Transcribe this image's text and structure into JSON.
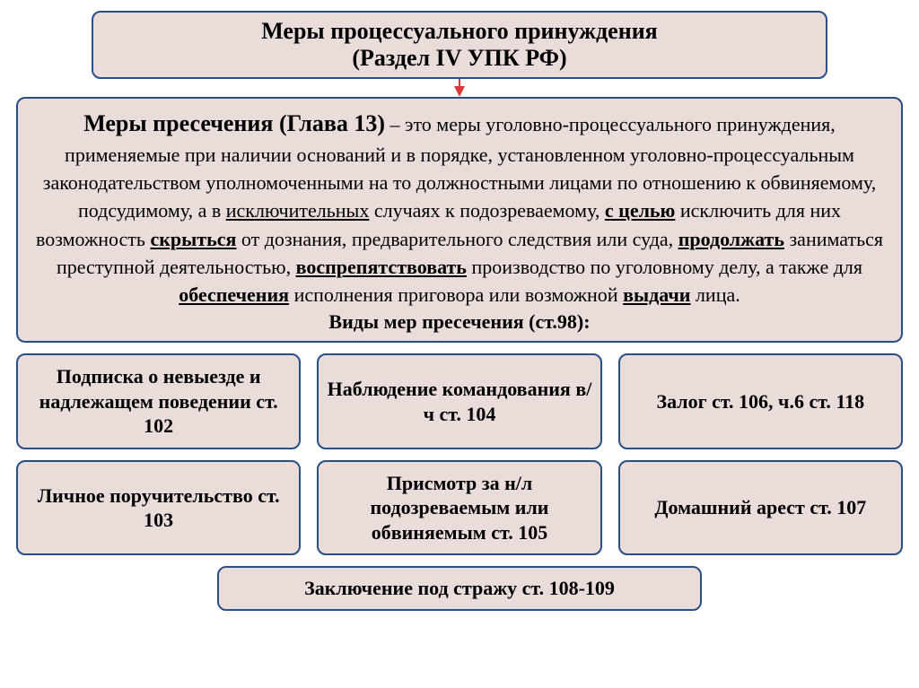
{
  "colors": {
    "border": "#2a4e86",
    "fill": "#e9dcd9",
    "arrow": "#d83a3a",
    "text": "#000000",
    "background": "#ffffff"
  },
  "title": {
    "line1": "Меры процессуального принуждения",
    "line2": "(Раздел IV УПК РФ)"
  },
  "definition": {
    "lead": "Меры пресечения (Глава 13)",
    "body_html": " – это меры уголовно-процессуального принуждения, применяемые при наличии оснований и в порядке, установленном уголовно-процессуальным законодательством уполномоченными на то должностными лицами по отношению к обвиняемому, подсудимому, а в <span class='u'>исключительных</span> случаях к подозреваемому, <b><span class='u'>с целью</span></b> исключить для них возможность <b><span class='u'>скрыться</span></b> от дознания, предварительного следствия или суда, <b><span class='u'>продолжать</span></b> заниматься преступной деятельностью, <b><span class='u'>воспрепятствовать</span></b> производство по уголовному делу, а также для <b><span class='u'>обеспечения</span></b> исполнения приговора или возможной <b><span class='u'>выдачи</span></b> лица.",
    "types_label": "Виды мер пресечения (ст.98):"
  },
  "measures": {
    "row1": [
      "Подписка о невыезде и надлежащем поведении ст. 102",
      "Наблюдение командования в/ч ст. 104",
      "Залог ст. 106, ч.6 ст. 118"
    ],
    "row2": [
      "Личное поручительство ст. 103",
      "Присмотр за н/л подозреваемым или обвиняемым ст. 105",
      "Домашний арест ст. 107"
    ],
    "bottom": "Заключение под стражу ст. 108-109"
  },
  "style": {
    "title_fontsize": 26,
    "def_lead_fontsize": 26,
    "def_body_fontsize": 22,
    "cell_fontsize": 22,
    "border_radius": 10,
    "border_width": 2
  }
}
